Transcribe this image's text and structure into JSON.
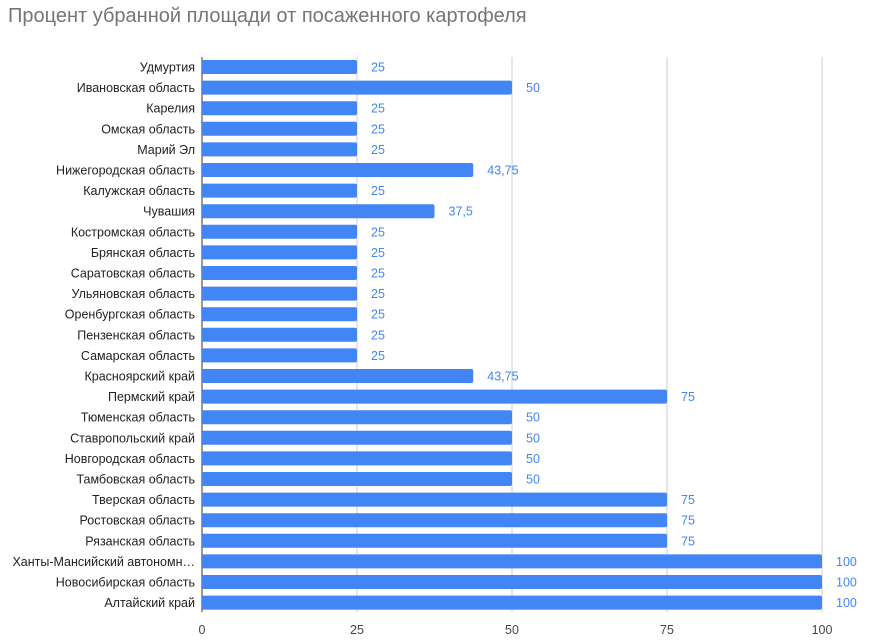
{
  "chart_data": {
    "type": "bar",
    "orientation": "horizontal",
    "title": "Процент убранной площади от посаженного картофеля",
    "xlabel": "",
    "ylabel": "",
    "xlim": [
      0,
      100
    ],
    "x_ticks": [
      "0",
      "25",
      "50",
      "75",
      "100"
    ],
    "grid": true,
    "legend": "none",
    "bar_color": "#4285f4",
    "label_color": "#4285f4",
    "categories": [
      "Удмуртия",
      "Ивановская область",
      "Карелия",
      "Омская область",
      "Марий Эл",
      "Нижегородская область",
      "Калужская область",
      "Чувашия",
      "Костромская область",
      "Брянская область",
      "Саратовская область",
      "Ульяновская область",
      "Оренбургская область",
      "Пензенская область",
      "Самарская область",
      "Красноярский край",
      "Пермский край",
      "Тюменская область",
      "Ставропольский край",
      "Новгородская область",
      "Тамбовская область",
      "Тверская область",
      "Ростовская область",
      "Рязанская область",
      "Ханты-Мансийский автономн…",
      "Новосибирская область",
      "Алтайский край"
    ],
    "values": [
      25,
      50,
      25,
      25,
      25,
      43.75,
      25,
      37.5,
      25,
      25,
      25,
      25,
      25,
      25,
      25,
      43.75,
      75,
      50,
      50,
      50,
      50,
      75,
      75,
      75,
      100,
      100,
      100
    ],
    "value_labels": [
      "25",
      "50",
      "25",
      "25",
      "25",
      "43,75",
      "25",
      "37,5",
      "25",
      "25",
      "25",
      "25",
      "25",
      "25",
      "25",
      "43,75",
      "75",
      "50",
      "50",
      "50",
      "50",
      "75",
      "75",
      "75",
      "100",
      "100",
      "100"
    ]
  }
}
